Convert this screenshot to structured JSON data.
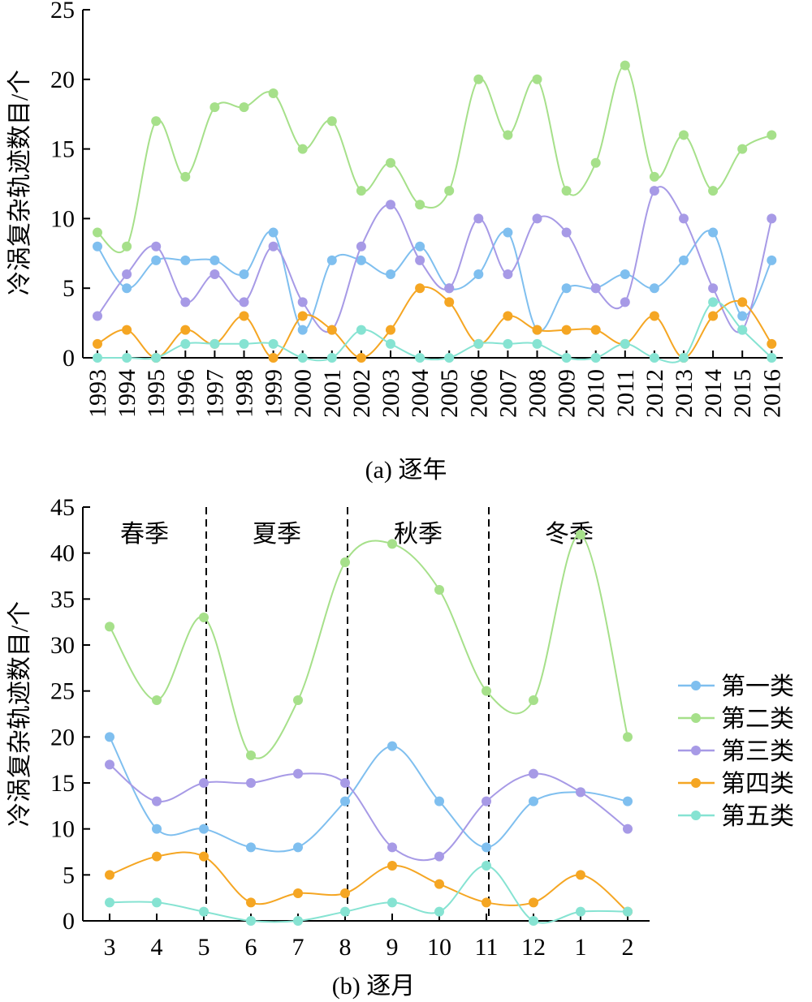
{
  "colors": {
    "第一类": "#7fbfef",
    "第二类": "#a6e08a",
    "第三类": "#a79ae6",
    "第四类": "#f5a623",
    "第五类": "#86e3d2"
  },
  "chart_data": [
    {
      "type": "line",
      "caption": "(a) 逐年",
      "ylabel": "冷涡复杂轨迹数目/个",
      "xlabel": "",
      "ylim": [
        0,
        25
      ],
      "yticks": [
        0,
        5,
        10,
        15,
        20,
        25
      ],
      "categories": [
        "1993",
        "1994",
        "1995",
        "1996",
        "1997",
        "1998",
        "1999",
        "2000",
        "2001",
        "2002",
        "2003",
        "2004",
        "2005",
        "2006",
        "2007",
        "2008",
        "2009",
        "2010",
        "2011",
        "2012",
        "2013",
        "2014",
        "2015",
        "2016"
      ],
      "series": [
        {
          "name": "第一类",
          "values": [
            8,
            5,
            7,
            7,
            7,
            6,
            9,
            2,
            7,
            7,
            6,
            8,
            5,
            6,
            9,
            2,
            5,
            5,
            6,
            5,
            7,
            9,
            3,
            7
          ]
        },
        {
          "name": "第二类",
          "values": [
            9,
            8,
            17,
            13,
            18,
            18,
            19,
            15,
            17,
            12,
            14,
            11,
            12,
            20,
            16,
            20,
            12,
            14,
            21,
            13,
            16,
            12,
            15,
            16
          ]
        },
        {
          "name": "第三类",
          "values": [
            3,
            6,
            8,
            4,
            6,
            4,
            8,
            4,
            2,
            8,
            11,
            7,
            5,
            10,
            6,
            10,
            9,
            5,
            4,
            12,
            10,
            5,
            2,
            10
          ]
        },
        {
          "name": "第四类",
          "values": [
            1,
            2,
            0,
            2,
            1,
            3,
            0,
            3,
            2,
            0,
            2,
            5,
            4,
            1,
            3,
            2,
            2,
            2,
            1,
            3,
            0,
            3,
            4,
            1
          ]
        },
        {
          "name": "第五类",
          "values": [
            0,
            0,
            0,
            1,
            1,
            1,
            1,
            0,
            0,
            2,
            1,
            0,
            0,
            1,
            1,
            1,
            0,
            0,
            1,
            0,
            0,
            4,
            2,
            0
          ]
        }
      ]
    },
    {
      "type": "line",
      "caption": "(b) 逐月",
      "ylabel": "冷涡复杂轨迹数目/个",
      "xlabel": "",
      "ylim": [
        0,
        45
      ],
      "yticks": [
        0,
        5,
        10,
        15,
        20,
        25,
        30,
        35,
        40,
        45
      ],
      "categories": [
        "3",
        "4",
        "5",
        "6",
        "7",
        "8",
        "9",
        "10",
        "11",
        "12",
        "1",
        "2"
      ],
      "seasons": [
        "春季",
        "夏季",
        "秋季",
        "冬季"
      ],
      "season_dividers_after_category": [
        "5",
        "8",
        "11"
      ],
      "legend": {
        "position": "right",
        "entries": [
          "第一类",
          "第二类",
          "第三类",
          "第四类",
          "第五类"
        ]
      },
      "series": [
        {
          "name": "第一类",
          "values": [
            20,
            10,
            10,
            8,
            8,
            13,
            19,
            13,
            8,
            13,
            14,
            13
          ]
        },
        {
          "name": "第二类",
          "values": [
            32,
            24,
            33,
            18,
            24,
            39,
            41,
            36,
            25,
            24,
            42,
            20
          ]
        },
        {
          "name": "第三类",
          "values": [
            17,
            13,
            15,
            15,
            16,
            15,
            8,
            7,
            13,
            16,
            14,
            10
          ]
        },
        {
          "name": "第四类",
          "values": [
            5,
            7,
            7,
            2,
            3,
            3,
            6,
            4,
            2,
            2,
            5,
            1
          ]
        },
        {
          "name": "第五类",
          "values": [
            2,
            2,
            1,
            0,
            0,
            1,
            2,
            1,
            6,
            0,
            1,
            1
          ]
        }
      ]
    }
  ]
}
